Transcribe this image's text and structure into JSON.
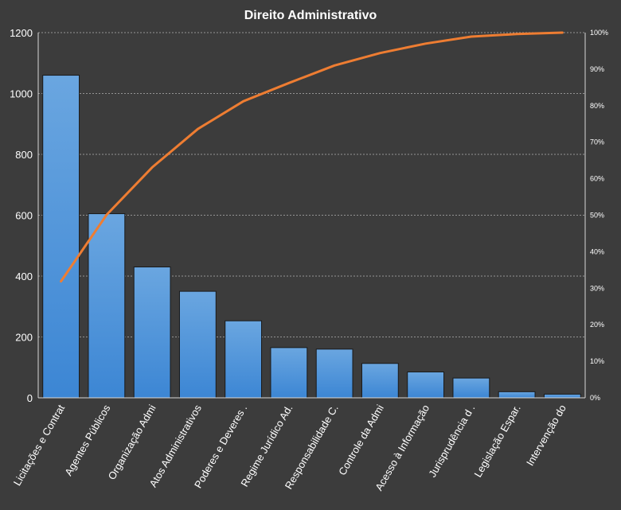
{
  "chart_data": {
    "type": "bar",
    "title": "Direito  Administrativo",
    "categories": [
      "Licitações e Contrat",
      "Agentes Públicos",
      "Organização Admi",
      "Atos Administrativos",
      "Poderes e Deveres .",
      "Regime Jurídico Ad.",
      "Responsabilidade C.",
      "Controle da Admi",
      "Acesso à Informação",
      "Jurisprudência d .",
      "Legislação Espar.",
      "Intervenção do"
    ],
    "series": [
      {
        "type": "bar",
        "axis": "left",
        "values": [
          1060,
          605,
          430,
          350,
          253,
          165,
          160,
          113,
          85,
          65,
          20,
          12
        ]
      },
      {
        "type": "line",
        "axis": "right",
        "values": [
          31.9,
          50.1,
          63.1,
          73.6,
          81.2,
          86.2,
          91.0,
          94.4,
          97.0,
          98.9,
          99.6,
          100.0
        ]
      }
    ],
    "ylim": [
      0,
      1200
    ],
    "yticks": [
      "0",
      "200",
      "400",
      "600",
      "800",
      "1000",
      "1200"
    ],
    "y2lim": [
      0,
      100
    ],
    "y2ticks": [
      "0%",
      "10%",
      "20%",
      "30%",
      "40%",
      "50%",
      "60%",
      "70%",
      "80%",
      "90%",
      "100%"
    ],
    "grid": true,
    "legend": "none",
    "colors": {
      "background": "#3c3c3c",
      "bar_top": "#6aa6e0",
      "bar_bottom": "#3c86d4",
      "bar_edge": "#1a1a1a",
      "line": "#ee7d32",
      "grid": "#d8d8d8",
      "text": "#ffffff"
    }
  }
}
